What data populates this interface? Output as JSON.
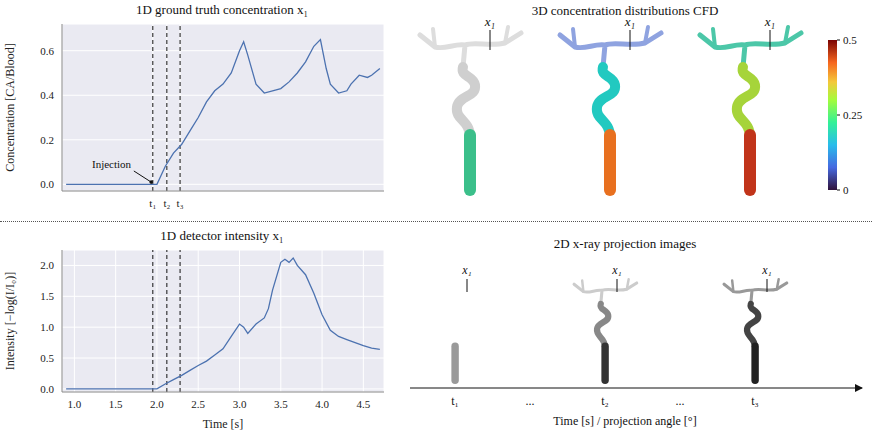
{
  "chart_data": [
    {
      "type": "line",
      "title": "1D ground truth concentration x₁",
      "y_label": "Concentration [CA/Blood]",
      "x": [
        0.9,
        1.2,
        1.5,
        1.8,
        2.0,
        2.1,
        2.2,
        2.3,
        2.4,
        2.5,
        2.6,
        2.7,
        2.8,
        2.9,
        3.0,
        3.05,
        3.1,
        3.2,
        3.3,
        3.4,
        3.5,
        3.6,
        3.7,
        3.8,
        3.9,
        3.98,
        4.05,
        4.1,
        4.2,
        4.3,
        4.35,
        4.45,
        4.55,
        4.6,
        4.7
      ],
      "values": [
        0,
        0,
        0,
        0,
        0,
        0.08,
        0.14,
        0.18,
        0.24,
        0.3,
        0.37,
        0.42,
        0.45,
        0.5,
        0.6,
        0.64,
        0.58,
        0.45,
        0.41,
        0.42,
        0.43,
        0.46,
        0.5,
        0.55,
        0.62,
        0.65,
        0.52,
        0.45,
        0.41,
        0.42,
        0.45,
        0.49,
        0.48,
        0.49,
        0.52
      ],
      "color": "#4c72b0",
      "xlim": [
        0.85,
        4.75
      ],
      "xticks": [
        {
          "value": 1.95,
          "label": "t₁"
        },
        {
          "value": 2.12,
          "label": "t₂"
        },
        {
          "value": 2.28,
          "label": "t₃"
        }
      ],
      "ylim": [
        -0.03,
        0.72
      ],
      "yticks": [
        {
          "value": 0,
          "label": "0.0"
        },
        0.2,
        0.4,
        0.6
      ],
      "grid": true,
      "line_style": "solid",
      "annotations": [
        {
          "text": "Injection",
          "x": 1.45,
          "y": 0.09,
          "arrow_from": [
            1.72,
            0.06
          ],
          "arrow_to": [
            1.93,
            0.01
          ]
        }
      ]
    },
    {
      "type": "line",
      "title": "1D detector intensity x₁",
      "y_label": "Intensity [−log(I/I₀)]",
      "x_label": "Time [s]",
      "x": [
        0.9,
        1.2,
        1.5,
        1.8,
        2.0,
        2.1,
        2.2,
        2.3,
        2.4,
        2.5,
        2.6,
        2.7,
        2.8,
        2.9,
        3.0,
        3.05,
        3.1,
        3.2,
        3.3,
        3.35,
        3.4,
        3.5,
        3.55,
        3.6,
        3.65,
        3.7,
        3.8,
        3.9,
        4.0,
        4.1,
        4.2,
        4.3,
        4.4,
        4.5,
        4.6,
        4.7
      ],
      "values": [
        0,
        0,
        0,
        0,
        0,
        0.08,
        0.15,
        0.22,
        0.3,
        0.38,
        0.45,
        0.55,
        0.65,
        0.85,
        1.05,
        1.0,
        0.9,
        1.05,
        1.15,
        1.3,
        1.6,
        2.05,
        2.1,
        2.05,
        2.12,
        2.0,
        1.85,
        1.55,
        1.2,
        0.95,
        0.85,
        0.8,
        0.75,
        0.7,
        0.66,
        0.64
      ],
      "color": "#4c72b0",
      "xlim": [
        0.85,
        4.75
      ],
      "xticks": [
        {
          "value": 1,
          "label": "1.0"
        },
        1.5,
        {
          "value": 2,
          "label": "2.0"
        },
        2.5,
        {
          "value": 3,
          "label": "3.0"
        },
        3.5,
        {
          "value": 4,
          "label": "4.0"
        },
        4.5
      ],
      "ylim": [
        -0.05,
        2.25
      ],
      "yticks": [
        {
          "value": 0,
          "label": "0.0"
        },
        0.5,
        {
          "value": 1,
          "label": "1.0"
        },
        1.5,
        {
          "value": 2,
          "label": "2.0"
        }
      ],
      "grid": true,
      "line_style": "solid",
      "vlines": [
        1.95,
        2.12,
        2.28
      ]
    }
  ],
  "cfd_panel": {
    "title": "3D concentration distributions CFD",
    "probe_label": "x₁",
    "colorbar": {
      "range": [
        0,
        0.5
      ],
      "ticks": [
        0,
        0.25,
        0.5
      ]
    }
  },
  "xray_panel": {
    "title": "2D x-ray projection images",
    "probe_label": "x₁",
    "frame_labels": [
      "t₁",
      "...",
      "t₂",
      "...",
      "t₃"
    ],
    "axis_label": "Time [s] / projection angle [°]"
  }
}
